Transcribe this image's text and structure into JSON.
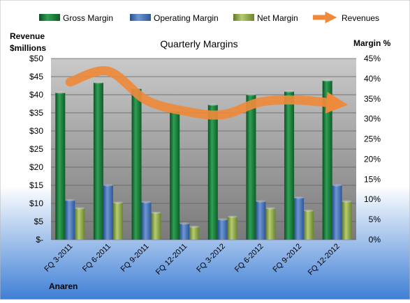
{
  "chart_data": {
    "type": "bar",
    "title": "Quarterly Margins",
    "left_axis_label": "Revenue $millions",
    "right_axis_label": "Margin %",
    "footer_label": "Anaren",
    "categories": [
      "FQ 3-2011",
      "FQ 6-2011",
      "FQ 9-2011",
      "FQ 12-2011",
      "FQ 3-2012",
      "FQ 6-2012",
      "FQ 9-2012",
      "FQ 12-2012"
    ],
    "left_axis": {
      "ylim": [
        0,
        50
      ],
      "ticks": [
        0,
        5,
        10,
        15,
        20,
        25,
        30,
        35,
        40,
        45,
        50
      ],
      "tick_labels": [
        "$-",
        "$5",
        "$10",
        "$15",
        "$20",
        "$25",
        "$30",
        "$35",
        "$40",
        "$45",
        "$50"
      ]
    },
    "right_axis": {
      "ylim": [
        0,
        45
      ],
      "ticks": [
        0,
        5,
        10,
        15,
        20,
        25,
        30,
        35,
        40,
        45
      ],
      "tick_labels": [
        "0%",
        "5%",
        "10%",
        "15%",
        "20%",
        "25%",
        "30%",
        "35%",
        "40%",
        "45%"
      ]
    },
    "series": [
      {
        "name": "Gross Margin",
        "axis": "right",
        "kind": "bar",
        "color": "#1a7a3a",
        "values": [
          36.5,
          39.0,
          37.5,
          32.0,
          33.5,
          36.0,
          36.8,
          39.5
        ]
      },
      {
        "name": "Operating Margin",
        "axis": "right",
        "kind": "bar",
        "color": "#3f6eb5",
        "values": [
          9.8,
          13.5,
          9.3,
          4.0,
          5.0,
          9.5,
          10.4,
          13.5
        ]
      },
      {
        "name": "Net Margin",
        "axis": "right",
        "kind": "bar",
        "color": "#8ea848",
        "values": [
          7.8,
          9.2,
          6.7,
          3.2,
          5.7,
          7.8,
          7.2,
          9.5
        ]
      },
      {
        "name": "Revenues",
        "axis": "left",
        "kind": "line",
        "color": "#ee8a3c",
        "values": [
          43.5,
          46.5,
          38.5,
          35.5,
          34.5,
          38.0,
          38.5,
          37.5
        ]
      }
    ],
    "colors": {
      "plot_bg_top": "#c9c9c9",
      "plot_bg_bottom": "#7a7a7a",
      "page_bg_top": "#ffffff",
      "page_bg_bottom": "#3f7fd6",
      "grid": "#5f5f5f"
    },
    "grid": true,
    "legend_position": "top"
  }
}
